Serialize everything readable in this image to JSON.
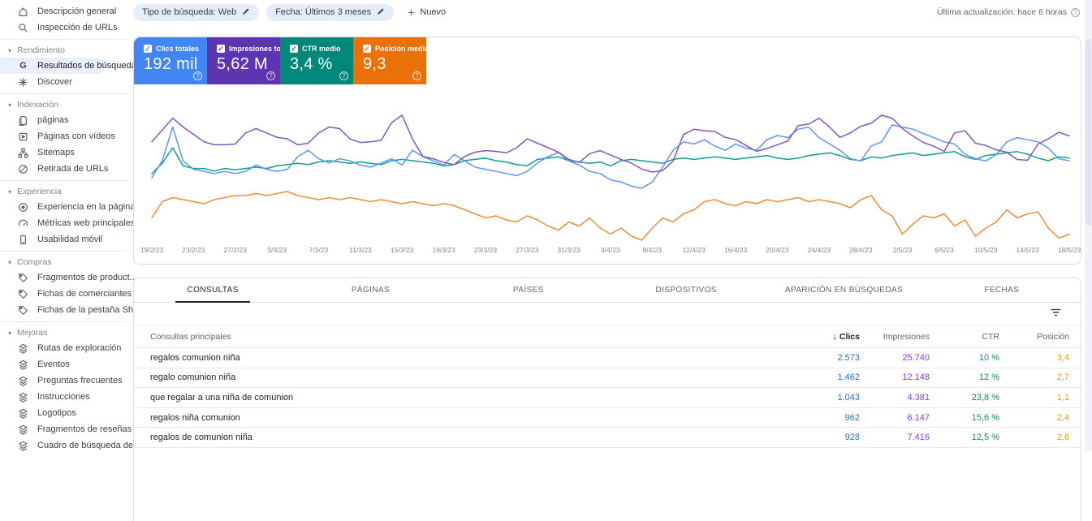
{
  "icons_note": "icon names map to inline shapes in renderer",
  "sidebar": {
    "top_items": [
      {
        "icon": "home-icon",
        "label": "Descripción general"
      },
      {
        "icon": "search-icon",
        "label": "Inspección de URLs"
      }
    ],
    "sections": [
      {
        "header": "Rendimiento",
        "items": [
          {
            "icon": "google-g-icon",
            "label": "Resultados de búsqueda",
            "selected": true
          },
          {
            "icon": "discover-star-icon",
            "label": "Discover"
          }
        ]
      },
      {
        "header": "Indexación",
        "items": [
          {
            "icon": "pages-icon",
            "label": "páginas"
          },
          {
            "icon": "video-pages-icon",
            "label": "Páginas con vídeos"
          },
          {
            "icon": "sitemap-icon",
            "label": "Sitemaps"
          },
          {
            "icon": "url-removal-icon",
            "label": "Retirada de URLs"
          }
        ]
      },
      {
        "header": "Experiencia",
        "items": [
          {
            "icon": "page-experience-icon",
            "label": "Experiencia en la página"
          },
          {
            "icon": "web-vitals-icon",
            "label": "Métricas web principales"
          },
          {
            "icon": "mobile-icon",
            "label": "Usabilidad móvil"
          }
        ]
      },
      {
        "header": "Compras",
        "items": [
          {
            "icon": "tag-icon",
            "label": "Fragmentos de product..."
          },
          {
            "icon": "tag-icon",
            "label": "Fichas de comerciantes"
          },
          {
            "icon": "tag-icon",
            "label": "Fichas de la pestaña Sh..."
          }
        ]
      },
      {
        "header": "Mejoras",
        "items": [
          {
            "icon": "enhancement-icon",
            "label": "Rutas de exploración"
          },
          {
            "icon": "enhancement-icon",
            "label": "Eventos"
          },
          {
            "icon": "enhancement-icon",
            "label": "Preguntas frecuentes"
          },
          {
            "icon": "enhancement-icon",
            "label": "Instrucciones"
          },
          {
            "icon": "enhancement-icon",
            "label": "Logotipos"
          },
          {
            "icon": "enhancement-icon",
            "label": "Fragmentos de reseñas"
          },
          {
            "icon": "enhancement-icon",
            "label": "Cuadro de búsqueda de..."
          }
        ]
      }
    ]
  },
  "topbar": {
    "chips": [
      {
        "label": "Tipo de búsqueda: Web",
        "icon": "pencil-icon"
      },
      {
        "label": "Fecha: Últimos 3 meses",
        "icon": "pencil-icon"
      }
    ],
    "new_button": "Nuevo",
    "last_update": "Última actualización: hace 6 horas"
  },
  "metric_cards": [
    {
      "label": "Clics totales",
      "value": "192 mil",
      "color": "#4285f4",
      "checked": true
    },
    {
      "label": "Impresiones total...",
      "value": "5,62 M",
      "color": "#5e35b1",
      "checked": true
    },
    {
      "label": "CTR medio",
      "value": "3,4 %",
      "color": "#00897b",
      "checked": true
    },
    {
      "label": "Posición media",
      "value": "9,3",
      "color": "#e8710a",
      "checked": true
    }
  ],
  "chart_data": {
    "type": "line",
    "x_tick_labels": [
      "19/2/23",
      "23/2/23",
      "27/2/23",
      "3/3/23",
      "7/3/23",
      "11/3/23",
      "15/3/23",
      "19/3/23",
      "23/3/23",
      "27/3/23",
      "31/3/23",
      "4/4/23",
      "8/4/23",
      "12/4/23",
      "16/4/23",
      "20/4/23",
      "24/4/23",
      "28/4/23",
      "2/5/23",
      "6/5/23",
      "10/5/23",
      "14/5/23",
      "18/5/23"
    ],
    "tick_every": 4,
    "legend": "none",
    "grid": false,
    "series": [
      {
        "name": "Clics",
        "color": "#5b96f7",
        "values": [
          2100,
          2500,
          3300,
          2500,
          2300,
          2250,
          2200,
          2250,
          2200,
          2250,
          2400,
          2300,
          2250,
          2300,
          2600,
          2750,
          2550,
          2450,
          2550,
          2500,
          2400,
          2350,
          2450,
          2550,
          2400,
          2750,
          2600,
          2500,
          2400,
          2650,
          2500,
          2350,
          2300,
          2250,
          2200,
          2150,
          2250,
          2450,
          2600,
          2700,
          2500,
          2400,
          2250,
          2200,
          2050,
          2000,
          1900,
          1850,
          2000,
          2350,
          2750,
          2950,
          2900,
          3000,
          2850,
          2750,
          2900,
          2800,
          2750,
          3000,
          3100,
          3050,
          3250,
          3300,
          3050,
          2900,
          2750,
          2550,
          2500,
          2850,
          2950,
          3350,
          3300,
          3250,
          3150,
          3050,
          2950,
          2900,
          2650,
          2550,
          2500,
          2650,
          2950,
          3050,
          3000,
          2950,
          2800,
          2550,
          2500
        ]
      },
      {
        "name": "Impresiones",
        "color": "#7e57c2",
        "values": [
          64000,
          72000,
          80000,
          74000,
          69000,
          64000,
          62000,
          62000,
          62500,
          70000,
          73000,
          70000,
          67000,
          66000,
          62000,
          63000,
          70000,
          74000,
          73000,
          66000,
          63500,
          64000,
          65000,
          77000,
          82000,
          66000,
          54000,
          52500,
          50000,
          48500,
          54000,
          57000,
          58000,
          57500,
          56500,
          60000,
          66000,
          63000,
          60000,
          57000,
          52000,
          50000,
          56000,
          58000,
          55000,
          52000,
          49500,
          45500,
          43500,
          44500,
          51000,
          69000,
          72500,
          71500,
          71000,
          67000,
          65500,
          61500,
          57500,
          59500,
          62000,
          64500,
          75000,
          76000,
          80000,
          74000,
          67000,
          70000,
          74500,
          76500,
          82000,
          80000,
          73000,
          68000,
          63500,
          61000,
          57500,
          70000,
          71500,
          63000,
          61500,
          58500,
          57000,
          52000,
          51500,
          62500,
          66000,
          70500,
          68000
        ]
      },
      {
        "name": "CTR",
        "color": "#0f9d8f",
        "values": [
          3.0,
          3.4,
          4.0,
          3.3,
          3.2,
          3.2,
          3.1,
          3.2,
          3.15,
          3.2,
          3.25,
          3.2,
          3.3,
          3.35,
          3.4,
          3.35,
          3.45,
          3.5,
          3.45,
          3.4,
          3.45,
          3.4,
          3.35,
          3.5,
          3.55,
          3.5,
          3.45,
          3.4,
          3.3,
          3.35,
          3.5,
          3.55,
          3.6,
          3.5,
          3.45,
          3.35,
          3.3,
          3.55,
          3.6,
          3.65,
          3.5,
          3.45,
          3.4,
          3.45,
          3.3,
          3.5,
          3.55,
          3.5,
          3.45,
          3.4,
          3.55,
          3.6,
          3.55,
          3.6,
          3.65,
          3.6,
          3.55,
          3.6,
          3.65,
          3.7,
          3.6,
          3.55,
          3.6,
          3.7,
          3.75,
          3.8,
          3.7,
          3.55,
          3.5,
          3.65,
          3.6,
          3.7,
          3.75,
          3.8,
          3.7,
          3.75,
          3.8,
          3.85,
          3.65,
          3.55,
          3.7,
          3.75,
          3.8,
          3.85,
          3.75,
          3.6,
          3.5,
          3.65,
          3.6
        ]
      },
      {
        "name": "Posición",
        "color": "#f08c38",
        "axis_inverted": true,
        "values": [
          10.4,
          9.6,
          9.4,
          9.5,
          9.6,
          9.7,
          9.5,
          9.4,
          9.3,
          9.3,
          9.2,
          9.3,
          9.2,
          9.1,
          9.3,
          9.4,
          9.5,
          9.4,
          9.5,
          9.4,
          9.5,
          9.6,
          9.5,
          9.6,
          9.7,
          9.6,
          9.7,
          9.8,
          9.7,
          9.8,
          10.0,
          10.2,
          10.4,
          10.3,
          10.5,
          10.6,
          10.3,
          10.5,
          10.8,
          11.0,
          10.6,
          10.8,
          10.4,
          10.9,
          11.2,
          10.9,
          11.3,
          11.5,
          10.9,
          10.4,
          10.6,
          10.2,
          10.0,
          9.6,
          9.5,
          9.7,
          9.8,
          9.6,
          9.7,
          9.5,
          9.6,
          9.5,
          9.4,
          9.6,
          9.5,
          9.6,
          9.7,
          9.9,
          9.5,
          9.3,
          10.0,
          10.3,
          11.2,
          10.7,
          10.3,
          10.4,
          10.2,
          10.8,
          10.5,
          11.3,
          10.9,
          10.6,
          10.0,
          10.4,
          10.2,
          10.1,
          10.9,
          11.4,
          11.2
        ]
      }
    ]
  },
  "tabs": [
    {
      "label": "CONSULTAS",
      "active": true
    },
    {
      "label": "PÁGINAS"
    },
    {
      "label": "PAÍSES"
    },
    {
      "label": "DISPOSITIVOS"
    },
    {
      "label": "APARICIÓN EN BÚSQUEDAS"
    },
    {
      "label": "FECHAS"
    }
  ],
  "table": {
    "query_header": "Consultas principales",
    "num_headers": [
      {
        "label": "Clics",
        "sorted": true,
        "color": "#202124"
      },
      {
        "label": "Impresiones"
      },
      {
        "label": "CTR"
      },
      {
        "label": "Posición"
      }
    ],
    "value_colors": {
      "clics": "#1a73e8",
      "impressions": "#9334e6",
      "ctr": "#0f8a70",
      "position": "#f29900"
    },
    "rows": [
      {
        "query": "regalos comunion niña",
        "clics": "2.573",
        "impressions": "25.740",
        "ctr": "10 %",
        "position": "3,4"
      },
      {
        "query": "regalo comunion niña",
        "clics": "1.462",
        "impressions": "12.148",
        "ctr": "12 %",
        "position": "2,7"
      },
      {
        "query": "que regalar a una niña de comunion",
        "clics": "1.043",
        "impressions": "4.381",
        "ctr": "23,8 %",
        "position": "1,1"
      },
      {
        "query": "regalos niña comunion",
        "clics": "962",
        "impressions": "6.147",
        "ctr": "15,6 %",
        "position": "2,4"
      },
      {
        "query": "regalos de comunion niña",
        "clics": "928",
        "impressions": "7.416",
        "ctr": "12,5 %",
        "position": "2,6"
      }
    ]
  },
  "glyphs": {
    "chevron_down": "▾",
    "plus": "+",
    "check": "✓",
    "help": "?",
    "sort_desc": "↓"
  }
}
